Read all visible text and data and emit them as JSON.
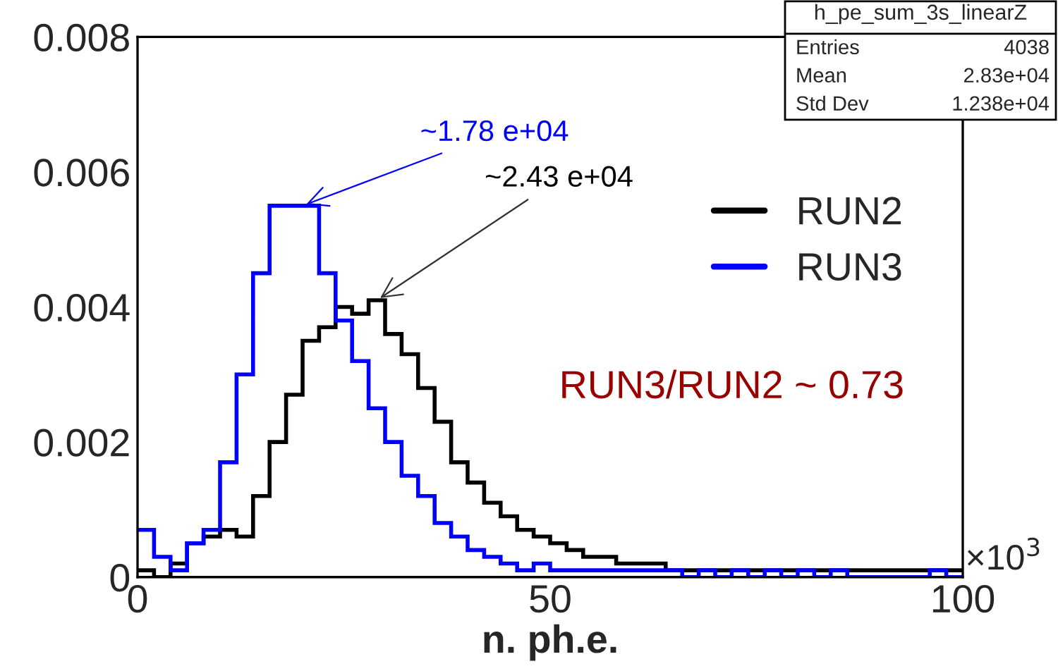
{
  "chart_data": {
    "type": "histogram",
    "title": "h_pe_sum_3s_linearZ",
    "xlabel": "n. ph.e.",
    "bins": [
      0,
      2,
      4,
      6,
      8,
      10,
      12,
      14,
      16,
      18,
      20,
      22,
      24,
      26,
      28,
      30,
      32,
      34,
      36,
      38,
      40,
      42,
      44,
      46,
      48,
      50,
      52,
      54,
      56,
      58,
      60,
      62,
      64,
      66,
      68,
      70,
      72,
      74,
      76,
      78,
      80,
      82,
      84,
      86,
      88,
      90,
      92,
      94,
      96,
      98,
      100
    ],
    "series": [
      {
        "name": "RUN2",
        "color": "#000000",
        "values": [
          0.0001,
          0.0,
          0.0002,
          0.0005,
          0.0006,
          0.0007,
          0.0006,
          0.0012,
          0.002,
          0.0027,
          0.0035,
          0.0037,
          0.004,
          0.0039,
          0.0041,
          0.0036,
          0.0033,
          0.0028,
          0.0023,
          0.0017,
          0.0014,
          0.0011,
          0.0009,
          0.0007,
          0.0006,
          0.0005,
          0.0004,
          0.0003,
          0.0003,
          0.0002,
          0.0002,
          0.0002,
          0.0001,
          0.0001,
          0.0001,
          0.0001,
          0.0001,
          0.0001,
          0.0001,
          0.0001,
          0.0001,
          0.0001,
          0.0001,
          0.0001,
          0.0001,
          0.0001,
          0.0001,
          0.0001,
          0.0001,
          0.0001
        ]
      },
      {
        "name": "RUN3",
        "color": "#0000ff",
        "values": [
          0.0007,
          0.0003,
          0.0001,
          0.0005,
          0.0007,
          0.0017,
          0.003,
          0.0045,
          0.0055,
          0.0055,
          0.0055,
          0.0045,
          0.0038,
          0.0032,
          0.0025,
          0.002,
          0.0015,
          0.0012,
          0.0008,
          0.0006,
          0.0004,
          0.0003,
          0.0002,
          0.0001,
          0.0002,
          0.0001,
          0.0001,
          0.0001,
          0.0001,
          0.0001,
          0.0001,
          0.0001,
          0.0001,
          0.0,
          0.0001,
          0.0,
          0.0001,
          0.0,
          0.0001,
          0.0,
          0.0001,
          0.0,
          0.0001,
          0.0,
          0.0,
          0.0,
          0.0,
          0.0,
          0.0001,
          0.0
        ]
      }
    ],
    "xlim": [
      0,
      100
    ],
    "ylim": [
      0,
      0.008
    ],
    "xticks": [
      0,
      50,
      100
    ],
    "yticks": [
      0,
      0.002,
      0.004,
      0.006,
      0.008
    ],
    "legend": "right",
    "grid": false,
    "annotations": [
      {
        "text": "~1.78 e+04",
        "x": 20,
        "y": 0.0055
      },
      {
        "text": "~2.43 e+04",
        "x": 29,
        "y": 0.0041
      },
      "RUN3/RUN2 ~ 0.73",
      "×10$^{3}$",
      "Entries",
      "4038",
      "Mean",
      "2.83e+04",
      "Std Dev",
      "1.238e+04"
    ]
  }
}
